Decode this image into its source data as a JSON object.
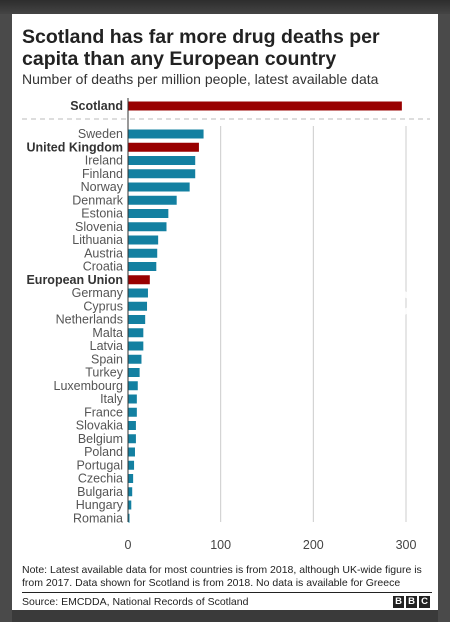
{
  "chart_data": {
    "type": "bar",
    "orientation": "horizontal",
    "title": "Scotland has far more drug deaths per capita than any European country",
    "subtitle": "Number of deaths per million people, latest available data",
    "categories": [
      "Scotland",
      "Sweden",
      "United Kingdom",
      "Ireland",
      "Finland",
      "Norway",
      "Denmark",
      "Estonia",
      "Slovenia",
      "Lithuania",
      "Austria",
      "Croatia",
      "European Union",
      "Germany",
      "Cyprus",
      "Netherlands",
      "Malta",
      "Latvia",
      "Spain",
      "Turkey",
      "Luxembourg",
      "Italy",
      "France",
      "Slovakia",
      "Belgium",
      "Poland",
      "Portugal",
      "Czechia",
      "Bulgaria",
      "Hungary",
      "Romania"
    ],
    "values": [
      295,
      81,
      76,
      72,
      72,
      66,
      52,
      43,
      41,
      32,
      31,
      30,
      23,
      21,
      20,
      18,
      16,
      16,
      14,
      12,
      10,
      9,
      9,
      8,
      8,
      7,
      6,
      5,
      4,
      3,
      1
    ],
    "highlighted": [
      "Scotland",
      "United Kingdom",
      "European Union"
    ],
    "colors": {
      "default": "#1380A1",
      "highlight": "#990000"
    },
    "xlim": [
      0,
      300
    ],
    "xticks": [
      "0",
      "100",
      "200",
      "300"
    ],
    "grid": true
  },
  "note": "Note: Latest available data for most countries is from 2018, although UK-wide figure is from 2017. Data shown for Scotland is from 2018. No data is available for Greece",
  "source": "Source: EMCDDA, National Records of Scotland",
  "logo": [
    "B",
    "B",
    "C"
  ]
}
